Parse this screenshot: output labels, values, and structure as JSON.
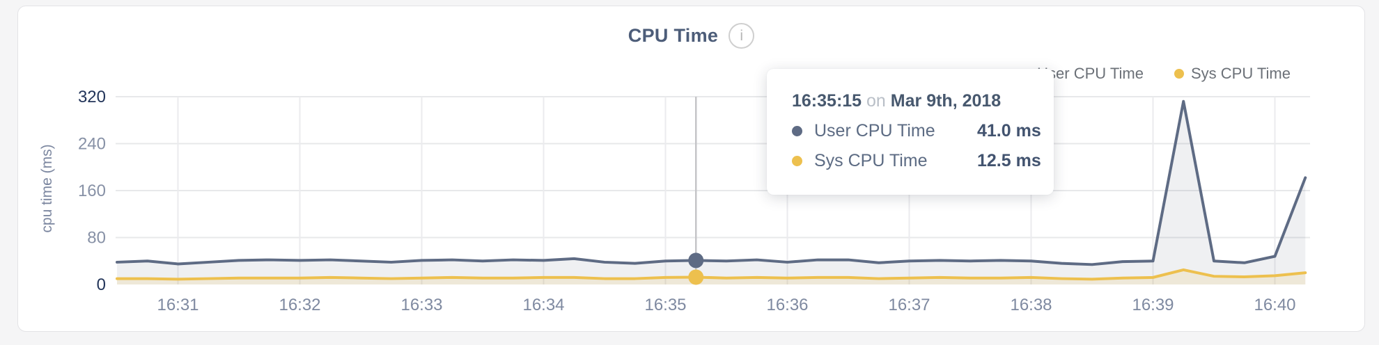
{
  "header": {
    "title": "CPU Time",
    "info_icon_glyph": "i"
  },
  "legend": {
    "items": [
      {
        "label": "User CPU Time",
        "color": "#5e6b84"
      },
      {
        "label": "Sys CPU Time",
        "color": "#edc04e"
      }
    ]
  },
  "tooltip": {
    "time": "16:35:15",
    "conjunction": "on",
    "date": "Mar 9th, 2018",
    "rows": [
      {
        "label": "User CPU Time",
        "value": "41.0 ms",
        "color": "#5e6b84"
      },
      {
        "label": "Sys CPU Time",
        "value": "12.5 ms",
        "color": "#edc04e"
      }
    ]
  },
  "chart_data": {
    "type": "area",
    "title": "CPU Time",
    "xlabel": "",
    "ylabel": "cpu time (ms)",
    "ylim": [
      0,
      320
    ],
    "y_ticks": [
      0,
      80,
      160,
      240,
      320
    ],
    "y_ticks_emphasized": [
      0,
      320
    ],
    "x_ticks": [
      "16:31",
      "16:32",
      "16:33",
      "16:34",
      "16:35",
      "16:36",
      "16:37",
      "16:38",
      "16:39",
      "16:40"
    ],
    "x_tick_seconds": [
      60,
      120,
      180,
      240,
      300,
      360,
      420,
      480,
      540,
      600
    ],
    "x_start_seconds_after_16_30": 30,
    "x_step_seconds": 15,
    "grid": true,
    "legend_position": "top-right",
    "unit": "ms",
    "series": [
      {
        "name": "User CPU Time",
        "color": "#5e6b84",
        "fill": "rgba(94,107,132,0.10)",
        "values": [
          38,
          40,
          35,
          38,
          41,
          42,
          41,
          42,
          40,
          38,
          41,
          42,
          40,
          42,
          41,
          44,
          38,
          36,
          40,
          41,
          40,
          42,
          38,
          42,
          42,
          37,
          40,
          41,
          40,
          41,
          40,
          36,
          34,
          39,
          40,
          312,
          40,
          37,
          48,
          182
        ]
      },
      {
        "name": "Sys CPU Time",
        "color": "#edc04e",
        "fill": "rgba(237,192,78,0.16)",
        "values": [
          10,
          10,
          9,
          10,
          11,
          11,
          11,
          12,
          11,
          10,
          11,
          12,
          11,
          11,
          12,
          12,
          10,
          10,
          12,
          12.5,
          11,
          12,
          11,
          12,
          12,
          10,
          11,
          12,
          11,
          11,
          12,
          10,
          9,
          11,
          12,
          25,
          14,
          13,
          15,
          20
        ]
      }
    ],
    "highlight": {
      "point_index": 19,
      "time_label": "16:35:15",
      "date_label": "Mar 9th, 2018",
      "values": {
        "User CPU Time": 41.0,
        "Sys CPU Time": 12.5
      },
      "crosshair_color": "#c5c5c8"
    },
    "colors": {
      "grid_horizontal": "#e7e8ea",
      "grid_vertical": "#ebebee",
      "tick_label": "#8791a6",
      "tick_label_emphasized": "#23355a",
      "axis_title": "#7c87a0",
      "x_tick_label": "#7e89a0"
    }
  }
}
